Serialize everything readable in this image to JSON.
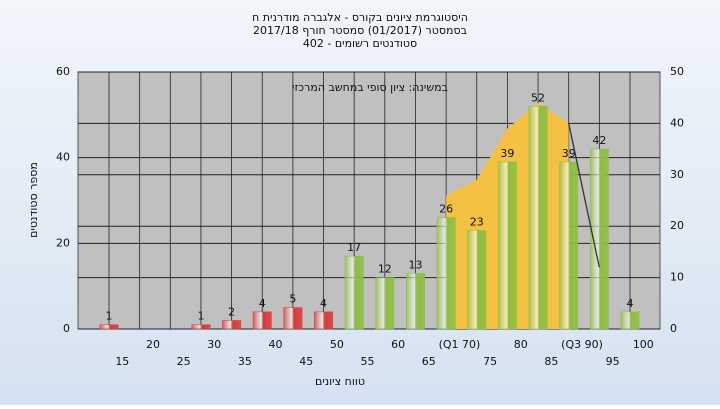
{
  "chart_data": {
    "type": "bar",
    "title": "היסטוגרמת ציונים בקורס - אלגברה מודרנית ח",
    "subtitle": [
      "בסמסטר (01/2017) סמסטר חורף 2017/18",
      "סטודנטים רשומים - 402"
    ],
    "annotation": "במשינה: ציון סופי במחשב המרכזי",
    "y_label": "מספר סטודנטים",
    "x_label": "טווח ציונים",
    "categories": [
      "15",
      "20",
      "25",
      "30",
      "35",
      "40",
      "45",
      "50",
      "55",
      "60",
      "65",
      "(Q1 70)",
      "75",
      "80",
      "85",
      "(Q3 90)",
      "95",
      "100"
    ],
    "values": [
      1,
      0,
      0,
      1,
      2,
      4,
      5,
      4,
      17,
      12,
      13,
      26,
      23,
      39,
      52,
      39,
      42,
      4
    ],
    "colors": [
      "#d93a3a",
      "#d93a3a",
      "#d93a3a",
      "#d93a3a",
      "#d93a3a",
      "#d93a3a",
      "#d93a3a",
      "#d93a3a",
      "#8cbf3f",
      "#8cbf3f",
      "#8cbf3f",
      "#8cbf3f",
      "#8cbf3f",
      "#8cbf3f",
      "#8cbf3f",
      "#8cbf3f",
      "#8cbf3f",
      "#8cbf3f"
    ],
    "area": {
      "color": "#f5c142",
      "axis": "y2",
      "values": [
        null,
        null,
        null,
        null,
        null,
        null,
        null,
        null,
        null,
        null,
        null,
        26,
        29,
        39,
        44,
        40,
        null,
        null
      ]
    },
    "line": {
      "color": "#333333",
      "axis": "y2",
      "values": [
        null,
        null,
        null,
        null,
        null,
        null,
        null,
        null,
        null,
        null,
        null,
        null,
        null,
        null,
        null,
        40,
        12,
        null
      ]
    },
    "ylim": [
      0,
      60
    ],
    "yticks": [
      0,
      20,
      40,
      60
    ],
    "y2lim": [
      0,
      50
    ],
    "y2ticks": [
      0,
      10,
      20,
      30,
      40,
      50
    ],
    "grid": true
  }
}
